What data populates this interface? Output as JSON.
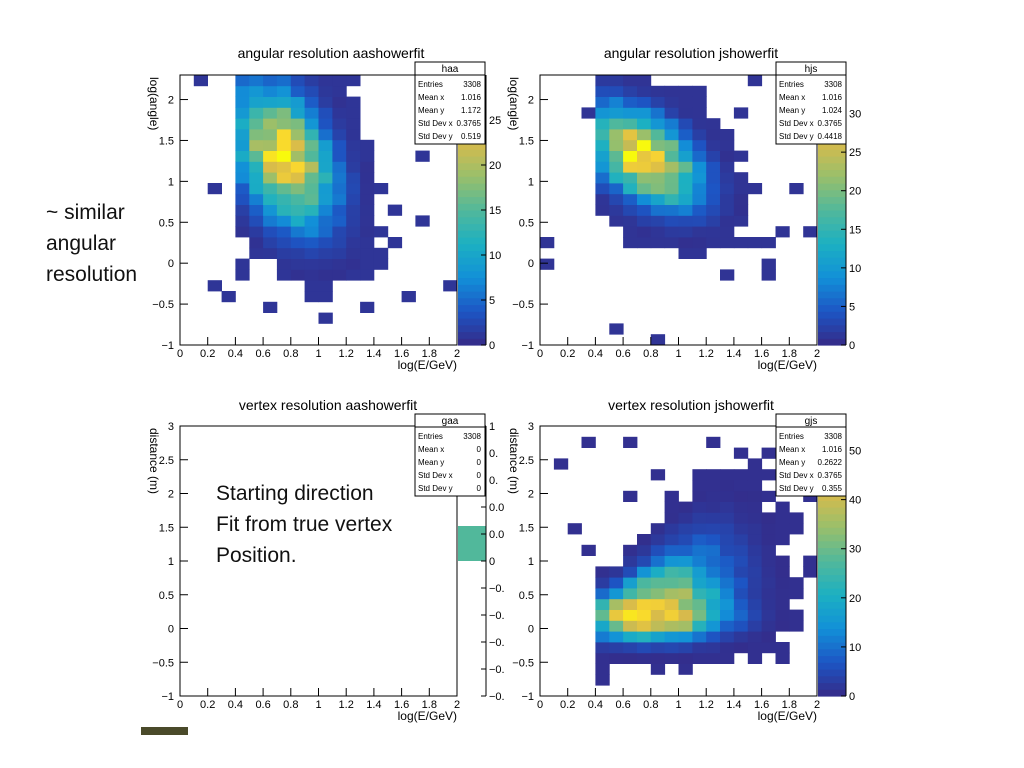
{
  "slide": {
    "note_left": [
      "~ similar",
      "angular",
      "resolution"
    ],
    "note_bottom": [
      "Starting direction",
      "Fit from true vertex",
      "Position."
    ]
  },
  "colors": {
    "palette": [
      "#352a87",
      "#1d55c4",
      "#1290d8",
      "#1cb0c2",
      "#51b89b",
      "#99bf6b",
      "#d6ba4c",
      "#f9d531",
      "#f8fa0d"
    ]
  },
  "chart_data": [
    {
      "id": "panel-haa",
      "type": "heatmap",
      "title": "angular resolution aashowerfit",
      "xlabel": "log(E/GeV)",
      "ylabel": "log(angle)",
      "xlim": [
        0,
        2
      ],
      "ylim": [
        -1,
        2.3
      ],
      "xticks": [
        "0",
        "0.2",
        "0.4",
        "0.6",
        "0.8",
        "1",
        "1.2",
        "1.4",
        "1.6",
        "1.8",
        "2"
      ],
      "yticks": [
        "2",
        "1.5",
        "1",
        "0.5",
        "0",
        "−0.5",
        "−1"
      ],
      "ytick_values": [
        2,
        1.5,
        1,
        0.5,
        0,
        -0.5,
        -1
      ],
      "zmax": 30,
      "zticks": [
        "0",
        "5",
        "10",
        "15",
        "20",
        "25"
      ],
      "ztick_values": [
        0,
        5,
        10,
        15,
        20,
        25
      ],
      "stats": {
        "name": "haa",
        "rows": [
          [
            "Entries",
            "3308"
          ],
          [
            "Mean x",
            "1.016"
          ],
          [
            "Mean y",
            "1.172"
          ],
          [
            "Std Dev x",
            "0.3765"
          ],
          [
            "Std Dev y",
            "0.519"
          ]
        ]
      },
      "distribution": {
        "mx": 0.75,
        "my": 1.3,
        "sx": 0.23,
        "sy": 0.5,
        "peak": 26,
        "tilt": 0.9
      }
    },
    {
      "id": "panel-hjs",
      "type": "heatmap",
      "title": "angular resolution jshowerfit",
      "xlabel": "log(E/GeV)",
      "ylabel": "log(angle)",
      "xlim": [
        0,
        2
      ],
      "ylim": [
        -1,
        2.3
      ],
      "xticks": [
        "0",
        "0.2",
        "0.4",
        "0.6",
        "0.8",
        "1",
        "1.2",
        "1.4",
        "1.6",
        "1.8",
        "2"
      ],
      "yticks": [
        "2",
        "1.5",
        "1",
        "0.5",
        "0",
        "−0.5",
        "−1"
      ],
      "ytick_values": [
        2,
        1.5,
        1,
        0.5,
        0,
        -0.5,
        -1
      ],
      "zmax": 35,
      "zticks": [
        "0",
        "5",
        "10",
        "15",
        "20",
        "25",
        "30"
      ],
      "ztick_values": [
        0,
        5,
        10,
        15,
        20,
        25,
        30
      ],
      "stats": {
        "name": "hjs",
        "rows": [
          [
            "Entries",
            "3308"
          ],
          [
            "Mean x",
            "1.016"
          ],
          [
            "Mean y",
            "1.024"
          ],
          [
            "Std Dev x",
            "0.3765"
          ],
          [
            "Std Dev y",
            "0.4418"
          ]
        ]
      },
      "distribution": {
        "mx": 0.75,
        "my": 1.3,
        "sx": 0.25,
        "sy": 0.33,
        "peak": 33,
        "tilt": 0.7
      }
    },
    {
      "id": "panel-gaa",
      "type": "heatmap",
      "title": "vertex resolution aashowerfit",
      "xlabel": "log(E/GeV)",
      "ylabel": "distance (m)",
      "xlim": [
        0,
        2
      ],
      "ylim": [
        -1,
        3
      ],
      "xticks": [
        "0",
        "0.2",
        "0.4",
        "0.6",
        "0.8",
        "1",
        "1.2",
        "1.4",
        "1.6",
        "1.8",
        "2"
      ],
      "yticks": [
        "3",
        "2.5",
        "2",
        "1.5",
        "1",
        "0.5",
        "0",
        "−0.5",
        "−1"
      ],
      "ytick_values": [
        3,
        2.5,
        2,
        1.5,
        1,
        0.5,
        0,
        -0.5,
        -1
      ],
      "zticks": [
        "1",
        "0.",
        "0.",
        "0.0",
        "0.0",
        "0",
        "−0.",
        "−0.",
        "−0.",
        "−0.",
        "−0."
      ],
      "stats": {
        "name": "gaa",
        "rows": [
          [
            "Entries",
            "3308"
          ],
          [
            "Mean x",
            "0"
          ],
          [
            "Mean y",
            "0"
          ],
          [
            "Std Dev x",
            "0"
          ],
          [
            "Std Dev y",
            "0"
          ]
        ]
      },
      "empty": true
    },
    {
      "id": "panel-gjs",
      "type": "heatmap",
      "title": "vertex resolution jshowerfit",
      "xlabel": "log(E/GeV)",
      "ylabel": "distance (m)",
      "xlim": [
        0,
        2
      ],
      "ylim": [
        -1,
        3
      ],
      "xticks": [
        "0",
        "0.2",
        "0.4",
        "0.6",
        "0.8",
        "1",
        "1.2",
        "1.4",
        "1.6",
        "1.8",
        "2"
      ],
      "yticks": [
        "3",
        "2.5",
        "2",
        "1.5",
        "1",
        "0.5",
        "0",
        "−0.5",
        "−1"
      ],
      "ytick_values": [
        3,
        2.5,
        2,
        1.5,
        1,
        0.5,
        0,
        -0.5,
        -1
      ],
      "zmax": 55,
      "zticks": [
        "0",
        "10",
        "20",
        "30",
        "40",
        "50"
      ],
      "ztick_values": [
        0,
        10,
        20,
        30,
        40,
        50
      ],
      "stats": {
        "name": "gjs",
        "rows": [
          [
            "Entries",
            "3308"
          ],
          [
            "Mean x",
            "1.016"
          ],
          [
            "Mean y",
            "0.2622"
          ],
          [
            "Std Dev x",
            "0.3765"
          ],
          [
            "Std Dev y",
            "0.355"
          ]
        ]
      },
      "distribution": {
        "mx": 0.8,
        "my": 0.2,
        "sx": 0.33,
        "sy": 0.22,
        "peak": 52,
        "tilt": 0.0,
        "spread_up": true
      }
    }
  ]
}
